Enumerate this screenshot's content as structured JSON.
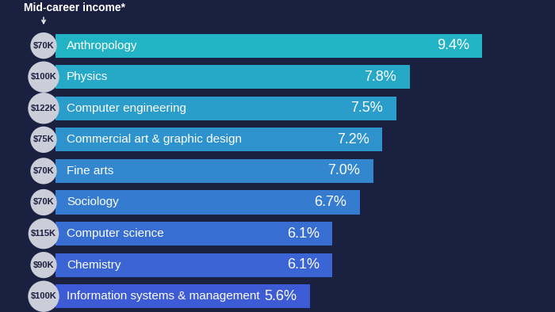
{
  "chart_data": {
    "type": "bar",
    "orientation": "horizontal",
    "income_header": "Mid-career income*",
    "income_labels": [
      "$70K",
      "$100K",
      "$122K",
      "$75K",
      "$70K",
      "$70K",
      "$115K",
      "$90K",
      "$100K"
    ],
    "categories": [
      "Anthropology",
      "Physics",
      "Computer engineering",
      "Commercial art & graphic design",
      "Fine arts",
      "Sociology",
      "Computer science",
      "Chemistry",
      "Information systems & management"
    ],
    "values": [
      9.4,
      7.8,
      7.5,
      7.2,
      7.0,
      6.7,
      6.1,
      6.1,
      5.6
    ],
    "value_labels": [
      "9.4%",
      "7.8%",
      "7.5%",
      "7.2%",
      "7.0%",
      "6.7%",
      "6.1%",
      "6.1%",
      "5.6%"
    ],
    "colors": [
      "#22b4c4",
      "#26a8c7",
      "#2a9dca",
      "#2e93cc",
      "#3287ce",
      "#357bd0",
      "#386ed2",
      "#3b64d4",
      "#3d5bd5"
    ],
    "data_labels": true,
    "tick_labels": false,
    "grid": false
  }
}
